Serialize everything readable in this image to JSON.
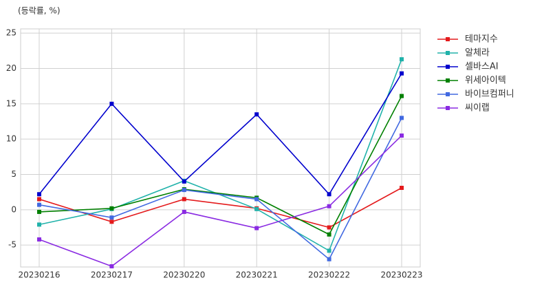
{
  "chart_data": {
    "type": "line",
    "ylabel": "(등락률, %)",
    "categories": [
      "20230216",
      "20230217",
      "20230220",
      "20230221",
      "20230222",
      "20230223"
    ],
    "series": [
      {
        "name": "테마지수",
        "color": "#e41a1c",
        "values": [
          1.5,
          -1.7,
          1.5,
          0.2,
          -2.5,
          3.1
        ]
      },
      {
        "name": "알체라",
        "color": "#20b2aa",
        "values": [
          -2.1,
          0.1,
          4.1,
          0.1,
          -5.8,
          21.3
        ]
      },
      {
        "name": "셀바스AI",
        "color": "#0000cd",
        "values": [
          2.2,
          15.0,
          4.0,
          13.5,
          2.2,
          19.3
        ]
      },
      {
        "name": "위세아이텍",
        "color": "#008000",
        "values": [
          -0.3,
          0.2,
          2.9,
          1.7,
          -3.5,
          16.1
        ]
      },
      {
        "name": "바이브컴퍼니",
        "color": "#4169e1",
        "values": [
          0.7,
          -1.1,
          2.8,
          1.5,
          -7.0,
          13.0
        ]
      },
      {
        "name": "씨이랩",
        "color": "#8a2be2",
        "values": [
          -4.2,
          -8.0,
          -0.3,
          -2.6,
          0.5,
          10.5
        ]
      }
    ],
    "ylim": [
      -8.1,
      25.6
    ],
    "yticks": [
      -5,
      0,
      5,
      10,
      15,
      20,
      25
    ],
    "grid": true,
    "legend": "outside-right"
  }
}
